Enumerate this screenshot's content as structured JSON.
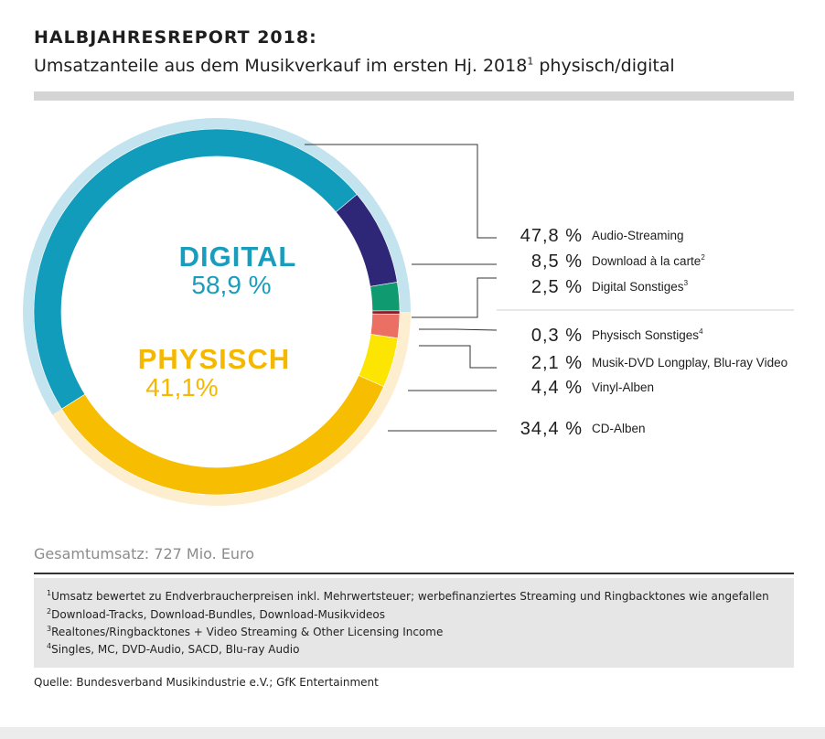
{
  "header": {
    "title": "HALBJAHRESREPORT 2018:",
    "subtitle_main": "Umsatzanteile aus dem Musikverkauf im ersten Hj. 2018",
    "subtitle_sup": "1",
    "subtitle_end": " physisch/digital"
  },
  "colors": {
    "digital": "#1a9dbd",
    "physisch": "#f5b800",
    "digital_ring": "#c3e3ee",
    "physisch_ring": "#fdeed0"
  },
  "chart_data": {
    "type": "pie",
    "style": "donut",
    "groups": [
      {
        "name": "DIGITAL",
        "value_label": "58,9 %",
        "value": 58.9
      },
      {
        "name": "PHYSISCH",
        "value_label": "41,1%",
        "value": 41.1
      }
    ],
    "slices": [
      {
        "group": "DIGITAL",
        "label": "Audio-Streaming",
        "value": 47.8,
        "value_label": "47,8 %",
        "sup": "",
        "color": "#119cbb"
      },
      {
        "group": "DIGITAL",
        "label": "Download à la carte",
        "value": 8.5,
        "value_label": "8,5 %",
        "sup": "2",
        "color": "#2e2778"
      },
      {
        "group": "DIGITAL",
        "label": "Digital Sonstiges",
        "value": 2.5,
        "value_label": "2,5 %",
        "sup": "3",
        "color": "#0f9b6f"
      },
      {
        "group": "PHYSISCH",
        "label": "Physisch Sonstiges",
        "value": 0.3,
        "value_label": "0,3 %",
        "sup": "4",
        "color": "#8c1d2b"
      },
      {
        "group": "PHYSISCH",
        "label": "Musik-DVD Longplay, Blu-ray Video",
        "value": 2.1,
        "value_label": "2,1 %",
        "sup": "",
        "color": "#ec6f64"
      },
      {
        "group": "PHYSISCH",
        "label": "Vinyl-Alben",
        "value": 4.4,
        "value_label": "4,4 %",
        "sup": "",
        "color": "#fce500"
      },
      {
        "group": "PHYSISCH",
        "label": "CD-Alben",
        "value": 34.4,
        "value_label": "34,4 %",
        "sup": "",
        "color": "#f7bd00"
      }
    ]
  },
  "total": "Gesamtumsatz: 727 Mio. Euro",
  "footnotes": [
    {
      "sup": "1",
      "text": "Umsatz bewertet zu Endverbraucherpreisen inkl. Mehrwertsteuer; werbefinanziertes Streaming und Ringbacktones wie angefallen"
    },
    {
      "sup": "2",
      "text": "Download-Tracks, Download-Bundles, Download-Musikvideos"
    },
    {
      "sup": "3",
      "text": "Realtones/Ringbacktones + Video Streaming & Other Licensing Income"
    },
    {
      "sup": "4",
      "text": "Singles, MC, DVD-Audio, SACD, Blu-ray Audio"
    }
  ],
  "source": "Quelle: Bundesverband Musikindustrie e.V.; GfK Entertainment"
}
